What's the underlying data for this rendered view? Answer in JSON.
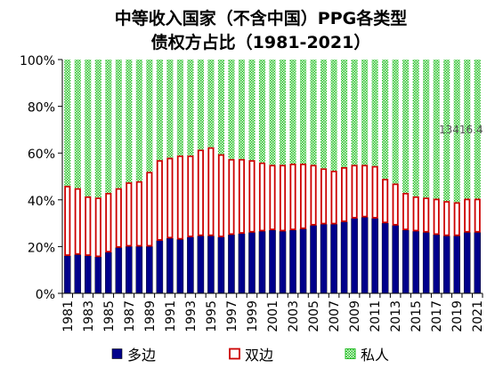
{
  "chart_data": {
    "type": "bar",
    "stacked": true,
    "percent": true,
    "title_lines": [
      "中等收入国家（不含中国）PPG各类型",
      "债权方占比（1981-2021）"
    ],
    "x": [
      1981,
      1982,
      1983,
      1984,
      1985,
      1986,
      1987,
      1988,
      1989,
      1990,
      1991,
      1992,
      1993,
      1994,
      1995,
      1996,
      1997,
      1998,
      1999,
      2000,
      2001,
      2002,
      2003,
      2004,
      2005,
      2006,
      2007,
      2008,
      2009,
      2010,
      2011,
      2012,
      2013,
      2014,
      2015,
      2016,
      2017,
      2018,
      2019,
      2020,
      2021
    ],
    "x_tick_labels": [
      "1981",
      "1983",
      "1985",
      "1987",
      "1989",
      "1991",
      "1993",
      "1995",
      "1997",
      "1999",
      "2001",
      "2003",
      "2005",
      "2007",
      "2009",
      "2011",
      "2013",
      "2015",
      "2017",
      "2019",
      "2021"
    ],
    "y_tick_labels": [
      "0%",
      "20%",
      "40%",
      "60%",
      "80%",
      "100%"
    ],
    "ylim": [
      0,
      100
    ],
    "series": [
      {
        "name": "多边",
        "color": "#00008b",
        "pattern": "solid",
        "values": [
          16,
          16.5,
          16,
          15.5,
          17.5,
          19.5,
          20,
          20,
          20,
          22.5,
          23.5,
          23,
          24,
          24.5,
          24.5,
          24,
          25,
          25.5,
          26,
          26.5,
          27,
          26.5,
          27,
          27.5,
          29,
          29.5,
          29.5,
          30.5,
          32,
          32.5,
          32,
          30,
          29,
          27,
          26.5,
          26,
          25,
          24.5,
          24.5,
          26,
          26
        ]
      },
      {
        "name": "双边",
        "color": "#cc0000",
        "pattern": "hollow",
        "values": [
          30,
          28.5,
          25.5,
          25.5,
          25.5,
          25.5,
          27.5,
          28,
          32,
          34.5,
          34.5,
          36,
          35,
          37,
          38,
          35.5,
          32.5,
          32,
          31,
          29.5,
          28,
          28.5,
          28.5,
          28,
          26,
          24,
          23,
          23.5,
          23,
          22.5,
          22.5,
          19,
          18,
          16,
          15,
          15,
          15.5,
          15,
          14.5,
          14.5,
          14.5
        ]
      },
      {
        "name": "私人",
        "color": "#33cc33",
        "pattern": "dotted",
        "values": [
          54,
          55,
          58.5,
          59,
          57,
          55,
          52.5,
          52,
          48,
          43,
          42,
          41,
          41,
          38.5,
          37.5,
          40.5,
          42.5,
          42.5,
          43,
          44,
          45,
          45,
          44.5,
          44.5,
          45,
          46.5,
          47.5,
          46,
          45,
          45,
          45.5,
          51,
          53,
          57,
          58.5,
          59,
          59.5,
          60.5,
          61,
          59.5,
          59.5
        ]
      }
    ],
    "annotation": "13416.4",
    "legend_position": "bottom",
    "grid": false
  }
}
